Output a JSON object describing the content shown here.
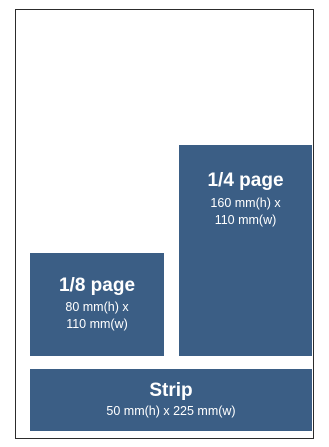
{
  "ad_sizes": {
    "quarter": {
      "title": "1/4 page",
      "dims": "160 mm(h) x\n110 mm(w)"
    },
    "eighth": {
      "title": "1/8 page",
      "dims": "80 mm(h) x\n110 mm(w)"
    },
    "strip": {
      "title": "Strip",
      "dims": "50 mm(h) x 225 mm(w)"
    }
  },
  "colors": {
    "block": "#3b5e85",
    "text": "#ffffff",
    "frame_border": "#2c2c2c"
  }
}
